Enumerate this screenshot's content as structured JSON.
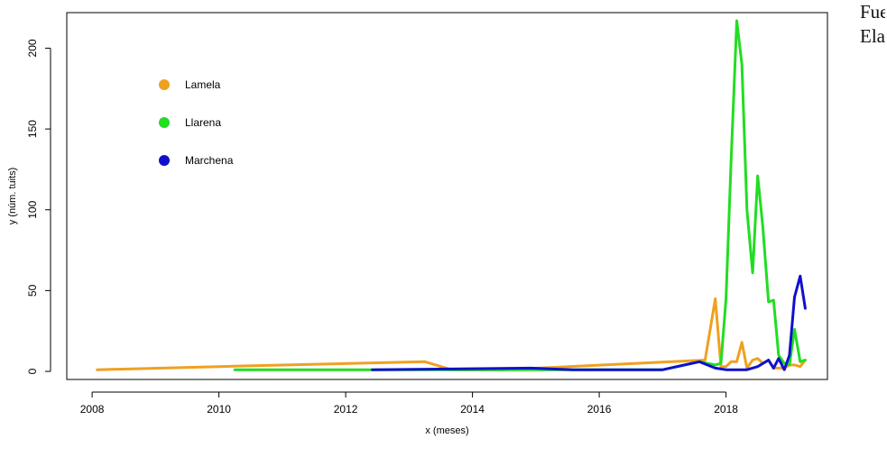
{
  "side_note": "Fuente:\nElabora",
  "chart_data": {
    "type": "line",
    "xlabel": "x (meses)",
    "ylabel": "y (núm. tuits)",
    "xlim": [
      2007.6,
      2019.6
    ],
    "ylim": [
      -5,
      222
    ],
    "x_ticks": [
      2008,
      2010,
      2012,
      2014,
      2016,
      2018
    ],
    "y_ticks": [
      0,
      50,
      100,
      150,
      200
    ],
    "grid": false,
    "legend_position": "top-left",
    "series": [
      {
        "name": "Lamela",
        "color": "#f0a020",
        "points": [
          [
            2008.08,
            1
          ],
          [
            2010.0,
            3
          ],
          [
            2013.25,
            6
          ],
          [
            2013.67,
            1
          ],
          [
            2014.5,
            1
          ],
          [
            2017.67,
            7
          ],
          [
            2017.83,
            45
          ],
          [
            2017.92,
            3
          ],
          [
            2018.0,
            3
          ],
          [
            2018.08,
            6
          ],
          [
            2018.17,
            6
          ],
          [
            2018.25,
            18
          ],
          [
            2018.33,
            2
          ],
          [
            2018.42,
            7
          ],
          [
            2018.5,
            8
          ],
          [
            2018.58,
            5
          ],
          [
            2018.67,
            7
          ],
          [
            2018.75,
            2
          ],
          [
            2018.83,
            2
          ],
          [
            2018.92,
            2
          ],
          [
            2019.0,
            4
          ],
          [
            2019.08,
            4
          ],
          [
            2019.17,
            3
          ],
          [
            2019.25,
            7
          ]
        ]
      },
      {
        "name": "Llarena",
        "color": "#22dd22",
        "points": [
          [
            2010.25,
            1
          ],
          [
            2015.33,
            1
          ],
          [
            2017.0,
            1
          ],
          [
            2017.58,
            6
          ],
          [
            2017.83,
            4
          ],
          [
            2017.92,
            5
          ],
          [
            2018.0,
            45
          ],
          [
            2018.08,
            130
          ],
          [
            2018.17,
            217
          ],
          [
            2018.25,
            190
          ],
          [
            2018.33,
            100
          ],
          [
            2018.42,
            61
          ],
          [
            2018.5,
            121
          ],
          [
            2018.58,
            90
          ],
          [
            2018.67,
            43
          ],
          [
            2018.75,
            44
          ],
          [
            2018.83,
            10
          ],
          [
            2018.92,
            5
          ],
          [
            2019.0,
            4
          ],
          [
            2019.08,
            26
          ],
          [
            2019.17,
            6
          ],
          [
            2019.25,
            7
          ]
        ]
      },
      {
        "name": "Marchena",
        "color": "#1010cc",
        "points": [
          [
            2012.42,
            1
          ],
          [
            2014.92,
            2
          ],
          [
            2015.58,
            1
          ],
          [
            2017.0,
            1
          ],
          [
            2017.58,
            6
          ],
          [
            2017.83,
            2
          ],
          [
            2018.0,
            1
          ],
          [
            2018.17,
            1
          ],
          [
            2018.33,
            1
          ],
          [
            2018.5,
            3
          ],
          [
            2018.67,
            7
          ],
          [
            2018.75,
            2
          ],
          [
            2018.83,
            8
          ],
          [
            2018.92,
            1
          ],
          [
            2019.0,
            10
          ],
          [
            2019.08,
            46
          ],
          [
            2019.17,
            59
          ],
          [
            2019.25,
            39
          ]
        ]
      }
    ]
  }
}
